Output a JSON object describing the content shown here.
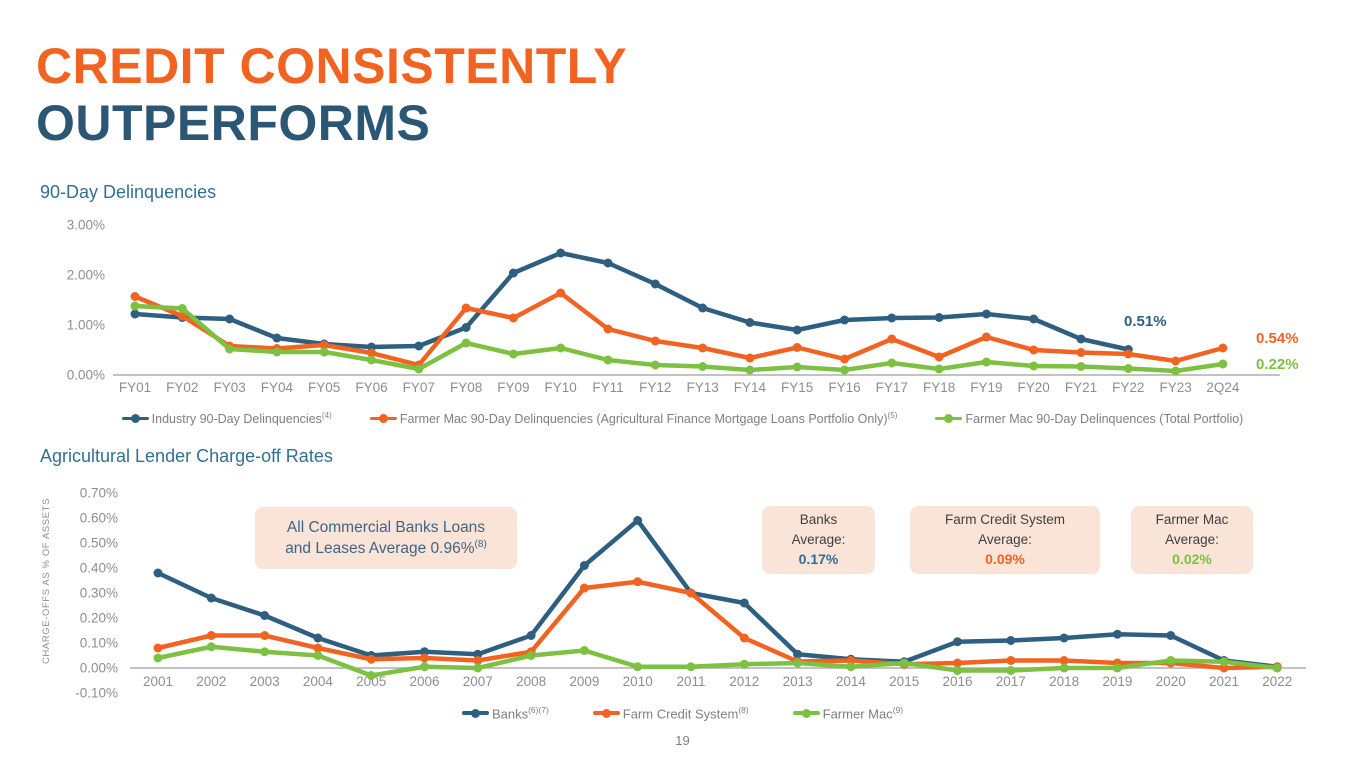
{
  "header": {
    "title_line1": "CREDIT CONSISTENTLY",
    "title_line2": "OUTPERFORMS"
  },
  "colors": {
    "orange": "#F26322",
    "blue": "#2E5F80",
    "green": "#7CC142",
    "title_blue": "#2B5674",
    "heading_blue": "#33708F",
    "annotation_bg": "#FAE3D7",
    "axis_text": "#8E8E8E"
  },
  "page_number": "19",
  "chart_data": [
    {
      "type": "line",
      "title": "90-Day Delinquencies",
      "ylim": [
        0,
        3
      ],
      "grid": false,
      "legend_position": "bottom",
      "yticks": [
        {
          "value": 0,
          "label": "0.00%"
        },
        {
          "value": 1,
          "label": "1.00%"
        },
        {
          "value": 2,
          "label": "2.00%"
        },
        {
          "value": 3,
          "label": "3.00%"
        }
      ],
      "categories": [
        "FY01",
        "FY02",
        "FY03",
        "FY04",
        "FY05",
        "FY06",
        "FY07",
        "FY08",
        "FY09",
        "FY10",
        "FY11",
        "FY12",
        "FY13",
        "FY14",
        "FY15",
        "FY16",
        "FY17",
        "FY18",
        "FY19",
        "FY20",
        "FY21",
        "FY22",
        "FY23",
        "2Q24"
      ],
      "series": [
        {
          "name": "Industry 90-Day Delinquencies",
          "sup": "(4)",
          "color": "#2E5F80",
          "values": [
            1.22,
            1.15,
            1.12,
            0.74,
            0.62,
            0.56,
            0.58,
            0.95,
            2.04,
            2.44,
            2.24,
            1.82,
            1.34,
            1.05,
            0.9,
            1.1,
            1.14,
            1.15,
            1.22,
            1.12,
            0.72,
            0.51,
            null,
            null
          ]
        },
        {
          "name": "Farmer Mac 90-Day Delinquencies (Agricultural Finance Mortgage Loans Portfolio Only)",
          "sup": "(5)",
          "color": "#F26322",
          "values": [
            1.57,
            1.18,
            0.58,
            0.53,
            0.6,
            0.44,
            0.2,
            1.34,
            1.14,
            1.64,
            0.92,
            0.68,
            0.54,
            0.34,
            0.55,
            0.32,
            0.72,
            0.36,
            0.76,
            0.5,
            0.45,
            0.42,
            0.28,
            0.54
          ]
        },
        {
          "name": "Farmer Mac 90-Day Delinquences (Total Portfolio)",
          "sup": "",
          "color": "#7CC142",
          "values": [
            1.38,
            1.33,
            0.52,
            0.46,
            0.46,
            0.3,
            0.12,
            0.64,
            0.42,
            0.54,
            0.3,
            0.2,
            0.17,
            0.1,
            0.16,
            0.1,
            0.24,
            0.12,
            0.26,
            0.18,
            0.17,
            0.13,
            0.08,
            0.22
          ]
        }
      ],
      "end_labels": [
        {
          "text": "0.51%",
          "color": "#2E5F80"
        },
        {
          "text": "0.54%",
          "color": "#F26322"
        },
        {
          "text": "0.22%",
          "color": "#7CC142"
        }
      ]
    },
    {
      "type": "line",
      "title": "Agricultural Lender Charge-off Rates",
      "ylabel": "CHARGE-OFFS AS % OF ASSETS",
      "ylim": [
        -0.1,
        0.7
      ],
      "grid": false,
      "legend_position": "bottom",
      "yticks": [
        {
          "value": -0.1,
          "label": "-0.10%"
        },
        {
          "value": 0,
          "label": "0.00%"
        },
        {
          "value": 0.1,
          "label": "0.10%"
        },
        {
          "value": 0.2,
          "label": "0.20%"
        },
        {
          "value": 0.3,
          "label": "0.30%"
        },
        {
          "value": 0.4,
          "label": "0.40%"
        },
        {
          "value": 0.5,
          "label": "0.50%"
        },
        {
          "value": 0.6,
          "label": "0.60%"
        },
        {
          "value": 0.7,
          "label": "0.70%"
        }
      ],
      "categories": [
        "2001",
        "2002",
        "2003",
        "2004",
        "2005",
        "2006",
        "2007",
        "2008",
        "2009",
        "2010",
        "2011",
        "2012",
        "2013",
        "2014",
        "2015",
        "2016",
        "2017",
        "2018",
        "2019",
        "2020",
        "2021",
        "2022"
      ],
      "series": [
        {
          "name": "Banks",
          "sup": "(6)(7)",
          "color": "#2E5F80",
          "values": [
            0.38,
            0.28,
            0.21,
            0.12,
            0.05,
            0.065,
            0.055,
            0.13,
            0.41,
            0.59,
            0.3,
            0.26,
            0.055,
            0.035,
            0.025,
            0.105,
            0.11,
            0.12,
            0.135,
            0.13,
            0.03,
            0.005
          ]
        },
        {
          "name": "Farm Credit System",
          "sup": "(8)",
          "color": "#F26322",
          "values": [
            0.08,
            0.13,
            0.13,
            0.08,
            0.035,
            0.04,
            0.03,
            0.065,
            0.32,
            0.345,
            0.3,
            0.12,
            0.026,
            0.03,
            0.015,
            0.02,
            0.03,
            0.03,
            0.02,
            0.02,
            0.0,
            0.005
          ]
        },
        {
          "name": "Farmer Mac",
          "sup": "(9)",
          "color": "#7CC142",
          "values": [
            0.04,
            0.085,
            0.065,
            0.05,
            -0.03,
            0.005,
            0.0,
            0.05,
            0.07,
            0.005,
            0.005,
            0.015,
            0.02,
            0.005,
            0.02,
            -0.01,
            -0.01,
            0.0,
            0.0,
            0.03,
            0.025,
            0.0
          ]
        }
      ],
      "annotations": {
        "note": {
          "line1": "All Commercial Banks Loans",
          "line2": "and Leases Average 0.96%",
          "sup": "(8)"
        },
        "boxes": [
          {
            "title": "Banks",
            "label": "Average:",
            "value": "0.17%",
            "color": "#2E6E9A"
          },
          {
            "title": "Farm Credit System",
            "label": "Average:",
            "value": "0.09%",
            "color": "#F26322"
          },
          {
            "title": "Farmer Mac",
            "label": "Average:",
            "value": "0.02%",
            "color": "#7CC142"
          }
        ]
      }
    }
  ]
}
